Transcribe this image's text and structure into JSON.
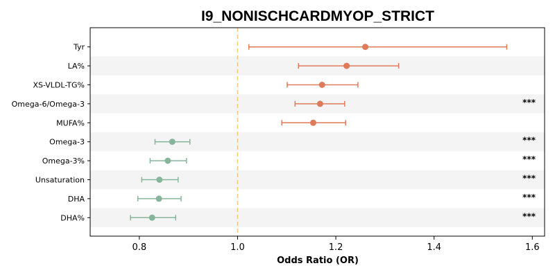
{
  "chart_data": {
    "type": "forest",
    "title": "I9_NONISCHCARDMYOP_STRICT",
    "xlabel": "Odds Ratio (OR)",
    "ylabel": "",
    "xlim": [
      0.7,
      1.625
    ],
    "xticks": [
      0.8,
      1.0,
      1.2,
      1.4,
      1.6
    ],
    "xtick_labels": [
      "0.8",
      "1.0",
      "1.2",
      "1.4",
      "1.6"
    ],
    "reference_line": 1.0,
    "colors": {
      "positive": "#e07b5a",
      "negative": "#86b59c",
      "reference": "#f5c97a",
      "band": "#f4f4f4"
    },
    "rows": [
      {
        "label": "Tyr",
        "or": 1.26,
        "lo": 1.023,
        "hi": 1.548,
        "sig": ""
      },
      {
        "label": "LA%",
        "or": 1.222,
        "lo": 1.124,
        "hi": 1.328,
        "sig": ""
      },
      {
        "label": "XS-VLDL-TG%",
        "or": 1.172,
        "lo": 1.101,
        "hi": 1.245,
        "sig": ""
      },
      {
        "label": "Omega-6/Omega-3",
        "or": 1.168,
        "lo": 1.117,
        "hi": 1.218,
        "sig": "***"
      },
      {
        "label": "MUFA%",
        "or": 1.154,
        "lo": 1.09,
        "hi": 1.22,
        "sig": ""
      },
      {
        "label": "Omega-3",
        "or": 0.867,
        "lo": 0.832,
        "hi": 0.903,
        "sig": "***"
      },
      {
        "label": "Omega-3%",
        "or": 0.858,
        "lo": 0.822,
        "hi": 0.896,
        "sig": "***"
      },
      {
        "label": "Unsaturation",
        "or": 0.841,
        "lo": 0.805,
        "hi": 0.879,
        "sig": "***"
      },
      {
        "label": "DHA",
        "or": 0.84,
        "lo": 0.797,
        "hi": 0.885,
        "sig": "***"
      },
      {
        "label": "DHA%",
        "or": 0.826,
        "lo": 0.782,
        "hi": 0.874,
        "sig": "***"
      }
    ]
  }
}
